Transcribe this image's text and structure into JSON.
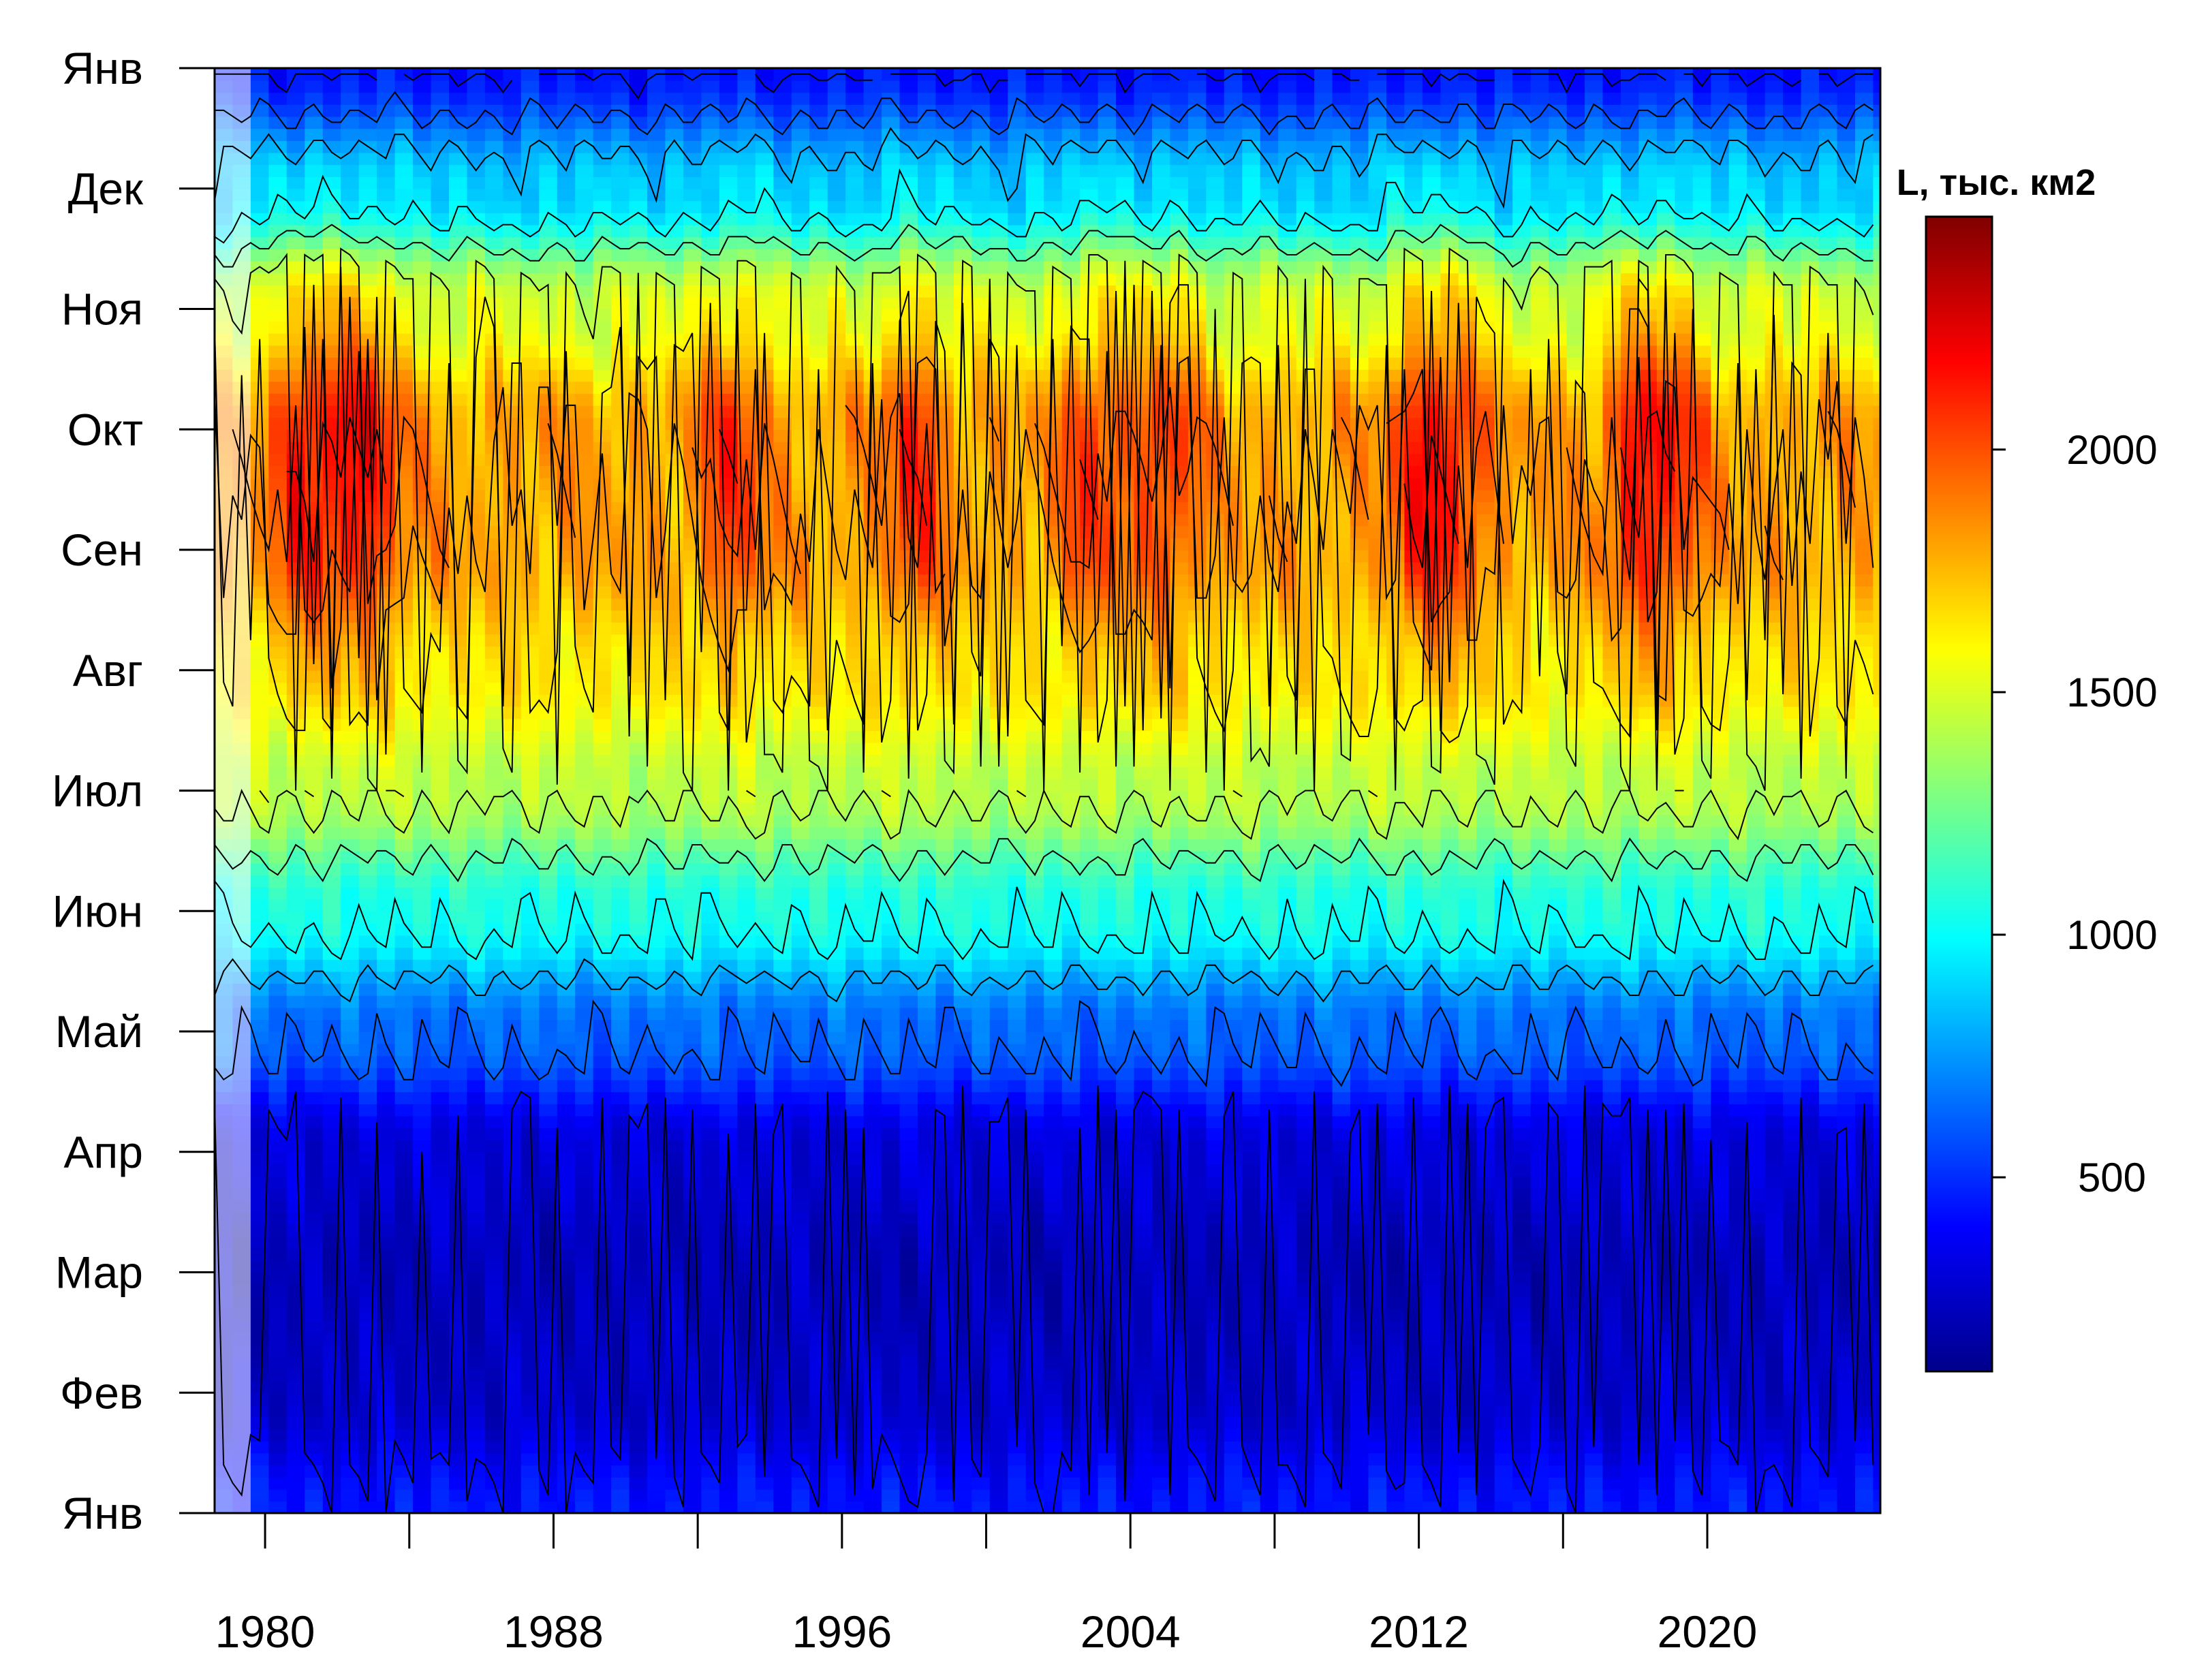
{
  "chart_data": {
    "type": "heatmap",
    "title": "",
    "xlabel": "",
    "ylabel": "",
    "x_range": [
      1978.6,
      2024.8
    ],
    "x_ticks": [
      1980,
      1984,
      1988,
      1992,
      1996,
      2000,
      2004,
      2008,
      2012,
      2016,
      2020
    ],
    "x_tick_labels": [
      {
        "year": 1980,
        "label": "1980"
      },
      {
        "year": 1988,
        "label": "1988"
      },
      {
        "year": 1996,
        "label": "1996"
      },
      {
        "year": 2004,
        "label": "2004"
      },
      {
        "year": 2012,
        "label": "2012"
      },
      {
        "year": 2020,
        "label": "2020"
      }
    ],
    "y_tick_labels": [
      "Янв",
      "Фев",
      "Мар",
      "Апр",
      "Май",
      "Июн",
      "Июл",
      "Авг",
      "Сен",
      "Окт",
      "Ноя",
      "Дек",
      "Янв"
    ],
    "y_range_months": [
      0,
      12
    ],
    "colorbar": {
      "title": "L, тыс. км2",
      "range": [
        100,
        2480
      ],
      "ticks": [
        500,
        1000,
        1500,
        2000
      ],
      "tick_labels": [
        "500",
        "1000",
        "1500",
        "2000"
      ],
      "colors": [
        "#00008B",
        "#0000FF",
        "#0080FF",
        "#00FFFF",
        "#80FF80",
        "#FFFF00",
        "#FF8000",
        "#FF0000",
        "#800000"
      ]
    },
    "seasonal_profile": {
      "months": [
        0,
        1,
        2,
        3,
        4,
        5,
        6,
        7,
        8,
        9,
        10,
        11,
        12
      ],
      "typical_values": [
        440,
        260,
        220,
        300,
        640,
        1050,
        1420,
        1640,
        1800,
        1800,
        1500,
        880,
        440
      ]
    },
    "high_value_years": [
      1981,
      1982,
      1983,
      1993,
      1998,
      2003,
      2005,
      2012,
      2013,
      2018,
      2019
    ],
    "contour_interval": 200,
    "grid": false,
    "legend_position": "right"
  }
}
